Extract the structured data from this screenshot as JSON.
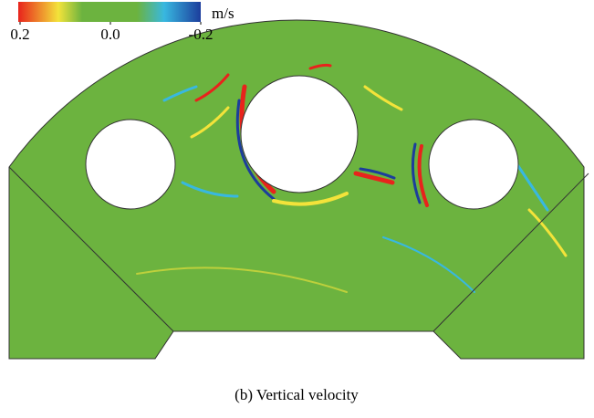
{
  "colorbar": {
    "unit": "m/s",
    "lim": [
      0.2,
      -0.2
    ],
    "ticks": [
      0.2,
      {
        "value": 0,
        "label": "0.0"
      },
      -0.2
    ]
  },
  "caption": "(b) Vertical velocity"
}
